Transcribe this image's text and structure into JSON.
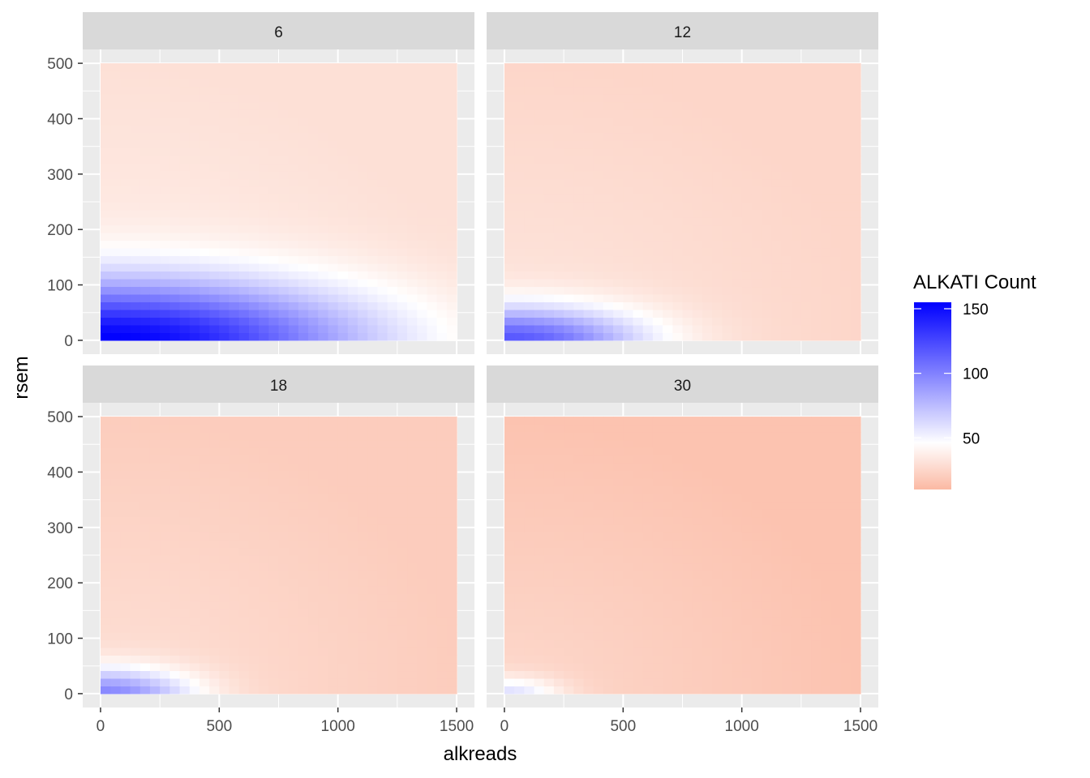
{
  "chart_data": {
    "type": "heatmap",
    "xlabel": "alkreads",
    "ylabel": "rsem",
    "xlim": [
      0,
      1500
    ],
    "ylim": [
      0,
      500
    ],
    "x_ticks": [
      0,
      500,
      1000,
      1500
    ],
    "y_ticks": [
      0,
      100,
      200,
      300,
      400,
      500
    ],
    "grid": true,
    "legend": {
      "title": "ALKATI Count",
      "position": "right",
      "ticks": [
        50,
        100,
        150
      ],
      "range": [
        10,
        155
      ],
      "colors": {
        "low": "#fbb9a3",
        "mid": "#ffffff",
        "high": "#0000ff"
      },
      "midpoint": 46
    },
    "panels": [
      {
        "label": "6",
        "max": 155,
        "x_extent": 1050,
        "y_extent": 105,
        "floor_near": 38,
        "floor_far": 30
      },
      {
        "label": "12",
        "max": 118,
        "x_extent": 560,
        "y_extent": 60,
        "floor_near": 33,
        "floor_far": 25
      },
      {
        "label": "18",
        "max": 98,
        "x_extent": 370,
        "y_extent": 45,
        "floor_near": 30,
        "floor_far": 20
      },
      {
        "label": "30",
        "max": 60,
        "x_extent": 230,
        "y_extent": 30,
        "floor_near": 26,
        "floor_far": 15
      }
    ]
  }
}
